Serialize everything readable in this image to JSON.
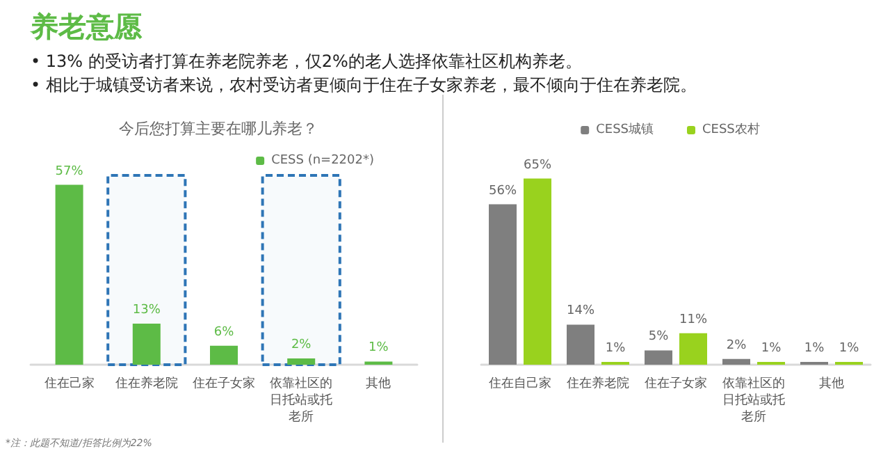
{
  "chart_data": [
    {
      "type": "other",
      "title": "养老意愿",
      "annotations": [
        "•  13% 的受访者打算在养老院养老，仅2%的老人选择依靠社区机构养老。",
        "•  相比于城镇受访者来说，农村受访者更倾向于住在子女家养老，最不倾向于住在养老院。"
      ]
    },
    {
      "type": "bar",
      "title": "今后您打算主要在哪儿养老？",
      "categories": [
        "住在己家",
        "住在养老院",
        "住在子女家",
        "依靠社区的日托站或托老所",
        "其他"
      ],
      "series": [
        {
          "name": "CESS (n=2202*)",
          "color": "#5dbb46",
          "values": [
            57,
            13,
            6,
            2,
            1
          ],
          "value_labels": [
            "57%",
            "13%",
            "6%",
            "2%",
            "1%"
          ]
        }
      ],
      "bands": [
        {
          "axis": "x",
          "from": "住在养老院",
          "to": "住在养老院",
          "color": "#2e75b6"
        },
        {
          "axis": "x",
          "from": "依靠社区的日托站或托老所",
          "to": "依靠社区的日托站或托老所",
          "color": "#2e75b6"
        }
      ],
      "annotations": [
        "*注：此题不知道/拒答比例为22%"
      ],
      "legend": "top right",
      "tick_labels": "x"
    },
    {
      "type": "bar",
      "categories": [
        "住在自己家",
        "住在养老院",
        "住在子女家",
        "依靠社区的日托站或托老所",
        "其他"
      ],
      "series": [
        {
          "name": "CESS城镇",
          "color": "#7f7f7f",
          "values": [
            56,
            14,
            5,
            2,
            1
          ],
          "value_labels": [
            "56%",
            "14%",
            "5%",
            "2%",
            "1%"
          ]
        },
        {
          "name": "CESS农村",
          "color": "#99d21e",
          "values": [
            65,
            1,
            11,
            1,
            1
          ],
          "value_labels": [
            "65%",
            "1%",
            "11%",
            "1%",
            "1%"
          ]
        }
      ],
      "legend": "top",
      "tick_labels": "x"
    }
  ]
}
